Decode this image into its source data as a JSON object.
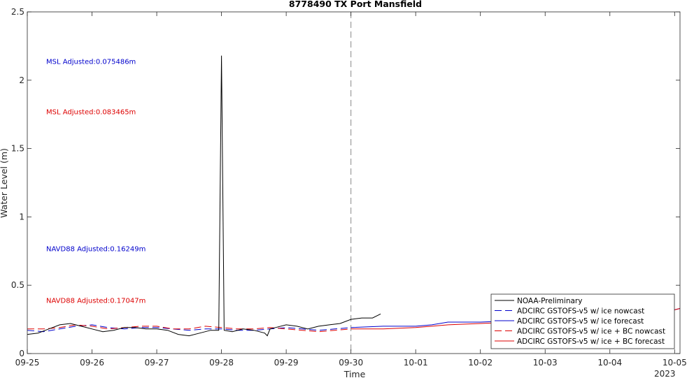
{
  "chart_data": {
    "type": "line",
    "title": "8778490 TX Port Mansfield",
    "xlabel": "Time",
    "ylabel": "Water Level (m)",
    "xlim": [
      "2023-09-25T00:00",
      "2023-10-05T02:00"
    ],
    "ylim": [
      0,
      2.5
    ],
    "yticks": [
      0,
      0.5,
      1,
      1.5,
      2,
      2.5
    ],
    "ytick_labels": [
      "0",
      "0.5",
      "1",
      "1.5",
      "2",
      "2.5"
    ],
    "xticks": [
      "2023-09-25",
      "2023-09-26",
      "2023-09-27",
      "2023-09-28",
      "2023-09-29",
      "2023-09-30",
      "2023-10-01",
      "2023-10-02",
      "2023-10-03",
      "2023-10-04",
      "2023-10-05"
    ],
    "xtick_labels": [
      "09-25",
      "09-26",
      "09-27",
      "09-28",
      "09-29",
      "09-30",
      "10-01",
      "10-02",
      "10-03",
      "10-04",
      "10-05"
    ],
    "year_label": "2023",
    "vline": {
      "x": "2023-09-30T00:00",
      "style": "dashed",
      "color": "#888888"
    },
    "annotations": [
      {
        "text": "MSL Adjusted:0.075486m",
        "color": "#0000cc",
        "x": "2023-09-25T07:00",
        "y": 2.12
      },
      {
        "text": "MSL Adjusted:0.083465m",
        "color": "#dd0000",
        "x": "2023-09-25T07:00",
        "y": 1.75
      },
      {
        "text": "NAVD88 Adjusted:0.16249m",
        "color": "#0000cc",
        "x": "2023-09-25T07:00",
        "y": 0.75
      },
      {
        "text": "NAVD88 Adjusted:0.17047m",
        "color": "#dd0000",
        "x": "2023-09-25T07:00",
        "y": 0.37
      }
    ],
    "legend_position": "bottom-right",
    "series": [
      {
        "name": "NOAA-Preliminary",
        "color": "#000000",
        "style": "solid",
        "x": [
          "2023-09-25T00:00",
          "2023-09-25T04:00",
          "2023-09-25T08:00",
          "2023-09-25T12:00",
          "2023-09-25T16:00",
          "2023-09-25T20:00",
          "2023-09-26T00:00",
          "2023-09-26T04:00",
          "2023-09-26T08:00",
          "2023-09-26T12:00",
          "2023-09-26T16:00",
          "2023-09-26T20:00",
          "2023-09-27T00:00",
          "2023-09-27T04:00",
          "2023-09-27T08:00",
          "2023-09-27T12:00",
          "2023-09-27T16:00",
          "2023-09-27T20:00",
          "2023-09-27T23:00",
          "2023-09-28T00:00",
          "2023-09-28T01:00",
          "2023-09-28T04:00",
          "2023-09-28T08:00",
          "2023-09-28T12:00",
          "2023-09-28T16:00",
          "2023-09-28T17:00",
          "2023-09-28T18:00",
          "2023-09-28T20:00",
          "2023-09-29T00:00",
          "2023-09-29T04:00",
          "2023-09-29T08:00",
          "2023-09-29T12:00",
          "2023-09-29T16:00",
          "2023-09-29T20:00",
          "2023-09-30T00:00",
          "2023-09-30T04:00",
          "2023-09-30T08:00",
          "2023-09-30T11:00"
        ],
        "y": [
          0.14,
          0.15,
          0.18,
          0.21,
          0.22,
          0.2,
          0.18,
          0.16,
          0.17,
          0.19,
          0.19,
          0.18,
          0.18,
          0.17,
          0.14,
          0.13,
          0.15,
          0.17,
          0.17,
          2.18,
          0.17,
          0.16,
          0.18,
          0.17,
          0.15,
          0.13,
          0.18,
          0.19,
          0.21,
          0.2,
          0.18,
          0.2,
          0.21,
          0.22,
          0.25,
          0.26,
          0.26,
          0.29
        ]
      },
      {
        "name": "ADCIRC GSTOFS-v5 w/ ice nowcast",
        "color": "#0000cc",
        "style": "dashed",
        "x": [
          "2023-09-25T00:00",
          "2023-09-25T06:00",
          "2023-09-25T12:00",
          "2023-09-25T18:00",
          "2023-09-26T00:00",
          "2023-09-26T06:00",
          "2023-09-26T12:00",
          "2023-09-26T18:00",
          "2023-09-27T00:00",
          "2023-09-27T06:00",
          "2023-09-27T12:00",
          "2023-09-27T18:00",
          "2023-09-28T00:00",
          "2023-09-28T06:00",
          "2023-09-28T12:00",
          "2023-09-28T18:00",
          "2023-09-29T00:00",
          "2023-09-29T06:00",
          "2023-09-29T12:00",
          "2023-09-29T18:00",
          "2023-09-30T00:00"
        ],
        "y": [
          0.17,
          0.16,
          0.18,
          0.2,
          0.21,
          0.19,
          0.18,
          0.19,
          0.19,
          0.18,
          0.17,
          0.18,
          0.18,
          0.17,
          0.17,
          0.18,
          0.19,
          0.18,
          0.17,
          0.18,
          0.19
        ]
      },
      {
        "name": "ADCIRC GSTOFS-v5 w/ ice forecast",
        "color": "#0000cc",
        "style": "solid",
        "x": [
          "2023-09-30T00:00",
          "2023-09-30T12:00",
          "2023-10-01T00:00",
          "2023-10-01T06:00",
          "2023-10-01T12:00",
          "2023-10-02T00:00",
          "2023-10-02T12:00",
          "2023-10-03T00:00",
          "2023-10-03T12:00",
          "2023-10-04T00:00",
          "2023-10-04T12:00",
          "2023-10-05T00:00",
          "2023-10-05T02:00"
        ],
        "y": [
          0.19,
          0.2,
          0.2,
          0.21,
          0.23,
          0.23,
          0.24,
          0.26,
          0.27,
          0.28,
          0.3,
          0.32,
          0.33
        ]
      },
      {
        "name": "ADCIRC GSTOFS-v5 w/ ice + BC nowcast",
        "color": "#dd0000",
        "style": "dashed",
        "x": [
          "2023-09-25T00:00",
          "2023-09-25T06:00",
          "2023-09-25T12:00",
          "2023-09-25T18:00",
          "2023-09-26T00:00",
          "2023-09-26T06:00",
          "2023-09-26T12:00",
          "2023-09-26T18:00",
          "2023-09-27T00:00",
          "2023-09-27T06:00",
          "2023-09-27T12:00",
          "2023-09-27T18:00",
          "2023-09-28T00:00",
          "2023-09-28T06:00",
          "2023-09-28T12:00",
          "2023-09-28T18:00",
          "2023-09-29T00:00",
          "2023-09-29T06:00",
          "2023-09-29T12:00",
          "2023-09-29T18:00",
          "2023-09-30T00:00"
        ],
        "y": [
          0.18,
          0.18,
          0.19,
          0.21,
          0.2,
          0.18,
          0.19,
          0.2,
          0.2,
          0.18,
          0.18,
          0.2,
          0.19,
          0.18,
          0.18,
          0.19,
          0.18,
          0.17,
          0.16,
          0.17,
          0.18
        ]
      },
      {
        "name": "ADCIRC GSTOFS-v5 w/ ice + BC forecast",
        "color": "#dd0000",
        "style": "solid",
        "x": [
          "2023-09-30T00:00",
          "2023-09-30T12:00",
          "2023-10-01T00:00",
          "2023-10-01T06:00",
          "2023-10-01T12:00",
          "2023-10-02T00:00",
          "2023-10-02T12:00",
          "2023-10-03T00:00",
          "2023-10-03T12:00",
          "2023-10-04T00:00",
          "2023-10-04T12:00",
          "2023-10-05T00:00",
          "2023-10-05T02:00"
        ],
        "y": [
          0.18,
          0.18,
          0.19,
          0.2,
          0.21,
          0.22,
          0.23,
          0.25,
          0.27,
          0.28,
          0.3,
          0.32,
          0.33
        ]
      }
    ]
  }
}
